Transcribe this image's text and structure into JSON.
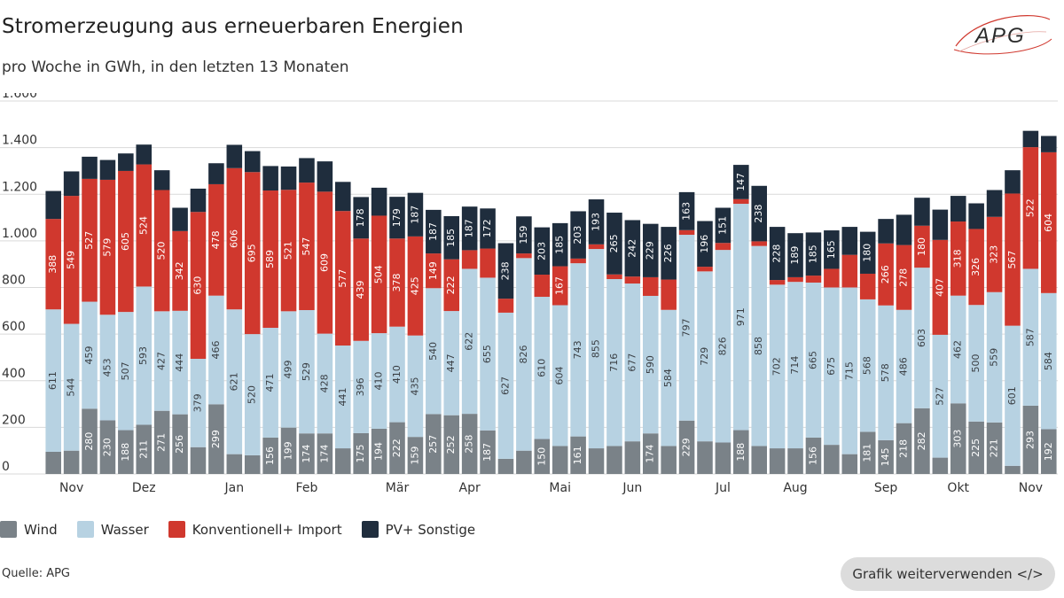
{
  "header": {
    "title": "Stromerzeugung aus erneuerbaren Energien",
    "subtitle": "pro Woche in GWh, in den letzten 13 Monaten",
    "logo_text": "APG"
  },
  "footer": {
    "source": "Quelle: APG",
    "reuse_button": "Grafik weiterverwenden </>"
  },
  "colors": {
    "wind": "#7a8288",
    "wasser": "#b7d2e2",
    "konventionell": "#d0382e",
    "pv": "#1f2d3d",
    "grid": "#d9d9d9",
    "axis_text": "#333333"
  },
  "chart_data": {
    "type": "bar",
    "stacked": true,
    "ylim": [
      0,
      1600
    ],
    "yticks": [
      0,
      200,
      400,
      600,
      800,
      1000,
      1200,
      1400,
      1600
    ],
    "ytick_labels": [
      "0",
      "200",
      "400",
      "600",
      "800",
      "1.000",
      "1.200",
      "1.400",
      "1.600"
    ],
    "grid": true,
    "legend_position": "bottom-left",
    "month_labels": [
      {
        "label": "Nov",
        "week": 1
      },
      {
        "label": "Dez",
        "week": 5
      },
      {
        "label": "Jan",
        "week": 10
      },
      {
        "label": "Feb",
        "week": 14
      },
      {
        "label": "Mär",
        "week": 19
      },
      {
        "label": "Apr",
        "week": 23
      },
      {
        "label": "Mai",
        "week": 28
      },
      {
        "label": "Jun",
        "week": 32
      },
      {
        "label": "Jul",
        "week": 37
      },
      {
        "label": "Aug",
        "week": 41
      },
      {
        "label": "Sep",
        "week": 46
      },
      {
        "label": "Okt",
        "week": 50
      },
      {
        "label": "Nov",
        "week": 54
      }
    ],
    "series": [
      {
        "name": "Wind",
        "key": "wind",
        "values": [
          95,
          100,
          280,
          230,
          188,
          211,
          271,
          256,
          115,
          299,
          85,
          80,
          156,
          199,
          174,
          174,
          110,
          175,
          194,
          222,
          159,
          257,
          252,
          258,
          187,
          65,
          100,
          150,
          120,
          161,
          110,
          120,
          140,
          174,
          120,
          229,
          140,
          135,
          188,
          120,
          110,
          110,
          156,
          125,
          85,
          181,
          145,
          218,
          282,
          70,
          303,
          225,
          221,
          35,
          293,
          192
        ],
        "labels": [
          null,
          null,
          "280",
          "230",
          "188",
          "211",
          "271",
          "256",
          null,
          "299",
          null,
          null,
          "156",
          "199",
          "174",
          "174",
          null,
          "175",
          "194",
          "222",
          "159",
          "257",
          "252",
          "258",
          "187",
          null,
          null,
          "150",
          null,
          "161",
          null,
          null,
          null,
          "174",
          null,
          "229",
          null,
          null,
          "188",
          null,
          null,
          null,
          "156",
          null,
          null,
          "181",
          "145",
          "218",
          "282",
          null,
          "303",
          "225",
          "221",
          null,
          "293",
          "192"
        ]
      },
      {
        "name": "Wasser",
        "key": "wasser",
        "values": [
          611,
          544,
          459,
          453,
          507,
          593,
          427,
          444,
          379,
          466,
          621,
          520,
          471,
          499,
          529,
          428,
          441,
          396,
          410,
          410,
          435,
          540,
          447,
          622,
          655,
          627,
          826,
          610,
          604,
          743,
          855,
          716,
          677,
          590,
          584,
          797,
          729,
          826,
          971,
          858,
          702,
          714,
          665,
          675,
          715,
          568,
          578,
          486,
          603,
          527,
          462,
          500,
          559,
          601,
          587,
          584
        ],
        "labels": [
          "611",
          "544",
          "459",
          "453",
          "507",
          "593",
          "427",
          "444",
          "379",
          "466",
          "621",
          "520",
          "471",
          "499",
          "529",
          "428",
          "441",
          "396",
          "410",
          "410",
          "435",
          "540",
          "447",
          "622",
          "655",
          "627",
          "826",
          "610",
          "604",
          "743",
          "855",
          "716",
          "677",
          "590",
          "584",
          "797",
          "729",
          "826",
          "971",
          "858",
          "702",
          "714",
          "665",
          "675",
          "715",
          "568",
          "578",
          "486",
          "603",
          "527",
          "462",
          "500",
          "559",
          "601",
          "587",
          "584"
        ]
      },
      {
        "name": "Konventionell+ Import",
        "key": "konventionell",
        "values": [
          388,
          549,
          527,
          579,
          605,
          524,
          520,
          342,
          630,
          478,
          606,
          695,
          589,
          521,
          547,
          609,
          577,
          439,
          504,
          378,
          425,
          149,
          222,
          80,
          125,
          60,
          20,
          95,
          167,
          20,
          20,
          20,
          30,
          80,
          130,
          20,
          20,
          30,
          20,
          20,
          20,
          20,
          30,
          80,
          140,
          110,
          266,
          278,
          180,
          407,
          318,
          326,
          323,
          567,
          522,
          604
        ],
        "labels": [
          "388",
          "549",
          "527",
          "579",
          "605",
          "524",
          "520",
          "342",
          "630",
          "478",
          "606",
          "695",
          "589",
          "521",
          "547",
          "609",
          "577",
          "439",
          "504",
          "378",
          "425",
          "149",
          "222",
          null,
          null,
          null,
          null,
          null,
          "167",
          null,
          null,
          null,
          null,
          null,
          null,
          null,
          null,
          null,
          null,
          null,
          null,
          null,
          null,
          null,
          null,
          null,
          "266",
          "278",
          "180",
          "407",
          "318",
          "326",
          "323",
          "567",
          "522",
          "604"
        ]
      },
      {
        "name": "PV+ Sonstige",
        "key": "pv",
        "values": [
          120,
          105,
          95,
          85,
          75,
          85,
          85,
          100,
          100,
          90,
          100,
          90,
          105,
          100,
          105,
          130,
          125,
          178,
          120,
          179,
          187,
          187,
          185,
          187,
          172,
          238,
          159,
          203,
          185,
          203,
          193,
          265,
          242,
          229,
          226,
          163,
          196,
          151,
          147,
          238,
          228,
          189,
          185,
          165,
          120,
          180,
          105,
          130,
          120,
          130,
          110,
          110,
          115,
          100,
          70,
          70
        ],
        "labels": [
          null,
          null,
          null,
          null,
          null,
          null,
          null,
          null,
          null,
          null,
          null,
          null,
          null,
          null,
          null,
          null,
          null,
          "178",
          null,
          "179",
          "187",
          "187",
          "185",
          "187",
          "172",
          "238",
          "159",
          "203",
          "185",
          "203",
          "193",
          "265",
          "242",
          "229",
          "226",
          "163",
          "196",
          "151",
          "147",
          "238",
          "228",
          "189",
          "185",
          "165",
          null,
          "180",
          null,
          null,
          null,
          null,
          null,
          null,
          null,
          null,
          null,
          null
        ]
      }
    ]
  }
}
